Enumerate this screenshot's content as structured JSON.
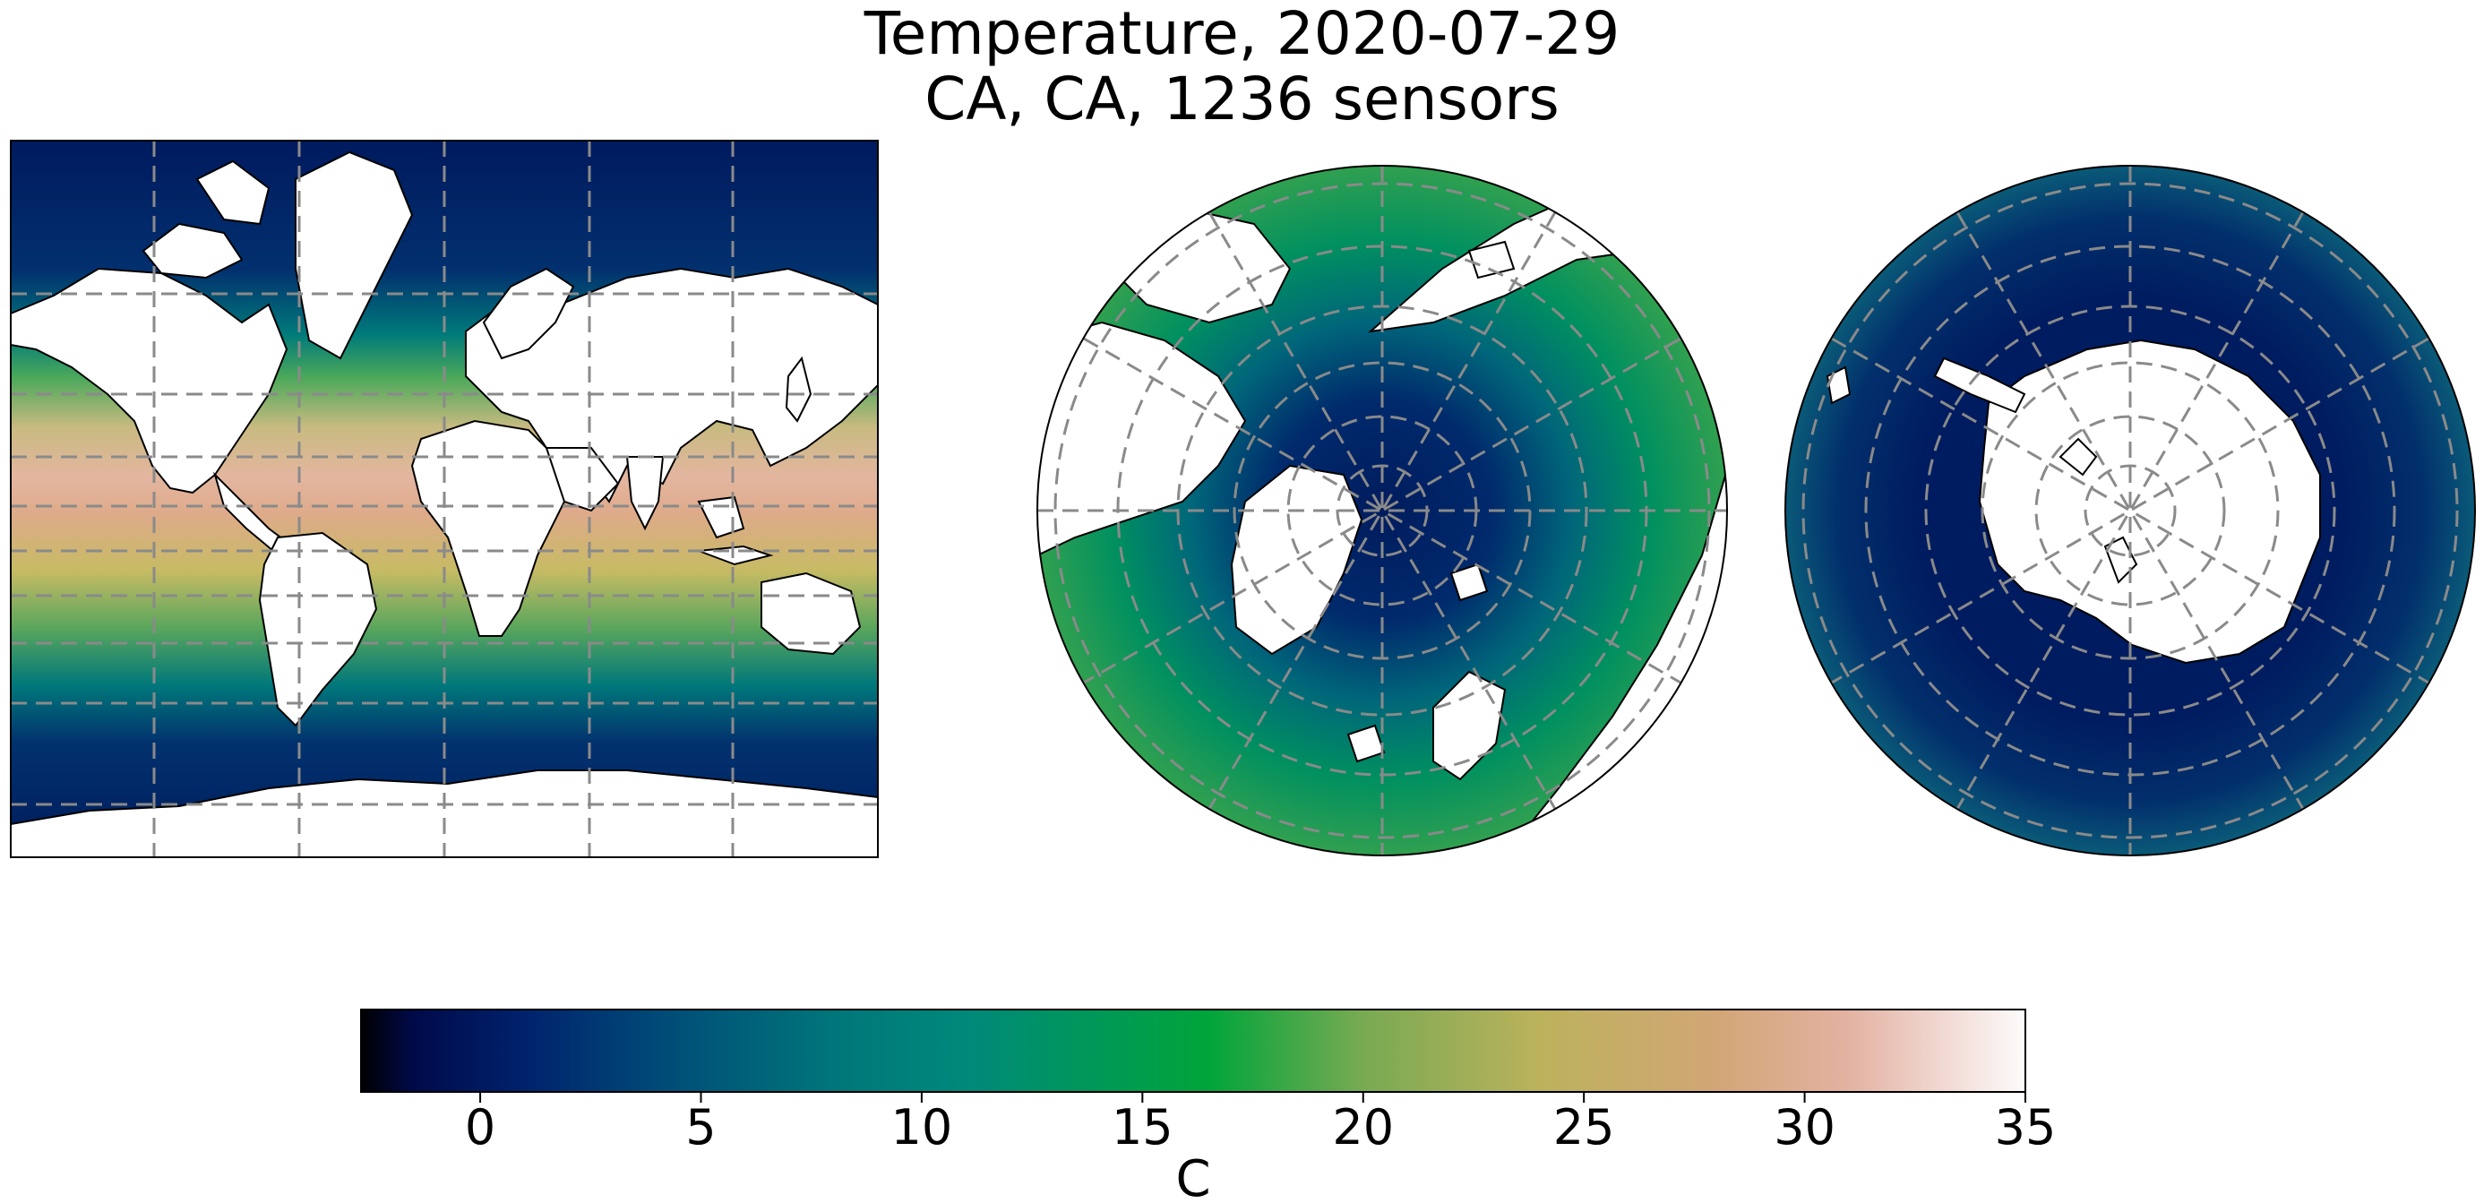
{
  "title": {
    "line1": "Temperature, 2020-07-29",
    "line2": "CA, CA, 1236 sensors"
  },
  "colorbar": {
    "label": "C",
    "min": -2.7,
    "max": 35,
    "ticks": [
      0,
      5,
      10,
      15,
      20,
      25,
      30,
      35
    ],
    "tick_labels": [
      "0",
      "5",
      "10",
      "15",
      "20",
      "25",
      "30",
      "35"
    ],
    "colormap": "gist_earth",
    "stops": [
      {
        "value": -2.7,
        "color": "#000000"
      },
      {
        "value": -1.5,
        "color": "#000a4a"
      },
      {
        "value": 1.0,
        "color": "#00226c"
      },
      {
        "value": 4.0,
        "color": "#004a78"
      },
      {
        "value": 8.0,
        "color": "#00767a"
      },
      {
        "value": 11.0,
        "color": "#00897a"
      },
      {
        "value": 16.5,
        "color": "#00a53a"
      },
      {
        "value": 20.0,
        "color": "#78aa52"
      },
      {
        "value": 24.0,
        "color": "#bcb25c"
      },
      {
        "value": 28.0,
        "color": "#d2a676"
      },
      {
        "value": 31.0,
        "color": "#e3b2a2"
      },
      {
        "value": 35.0,
        "color": "#fdfbfb"
      }
    ]
  },
  "maps": [
    {
      "projection": "mercator",
      "name": "global"
    },
    {
      "projection": "north-polar-stereographic",
      "name": "arctic"
    },
    {
      "projection": "south-polar-stereographic",
      "name": "antarctic"
    }
  ],
  "colors": {
    "land": "#ffffff",
    "coastline": "#000000",
    "gridline": "#8a8a8a"
  }
}
